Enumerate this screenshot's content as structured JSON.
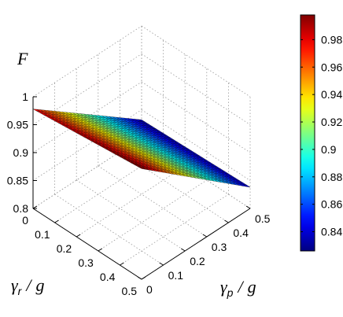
{
  "chart_data": {
    "type": "surface",
    "xlabel": {
      "symbol": "γ",
      "subscript": "r",
      "denominator": "g"
    },
    "ylabel": {
      "symbol": "γ",
      "subscript": "p",
      "denominator": "g"
    },
    "zlabel": "F",
    "xlim": [
      0,
      0.5
    ],
    "ylim": [
      0,
      0.5
    ],
    "zlim": [
      0.8,
      1.0
    ],
    "x_ticks": [
      "0",
      "0.1",
      "0.2",
      "0.3",
      "0.4",
      "0.5"
    ],
    "y_ticks": [
      "0",
      "0.1",
      "0.2",
      "0.3",
      "0.4",
      "0.5"
    ],
    "z_ticks": [
      "0.8",
      "0.85",
      "0.9",
      "0.95",
      "1"
    ],
    "grid": true,
    "colormap": "jet",
    "surface": {
      "grid_size": 31,
      "x_range": [
        0,
        0.5
      ],
      "y_range": [
        0,
        0.5
      ],
      "corner_values": {
        "x0_y0": 0.978,
        "x0_y05": 0.832,
        "x05_y0": 0.998,
        "x05_y05": 0.838
      }
    },
    "colorbar": {
      "ticks": [
        "0.84",
        "0.86",
        "0.88",
        "0.9",
        "0.92",
        "0.94",
        "0.96",
        "0.98"
      ],
      "range": [
        0.826,
        0.998
      ],
      "placement": "right"
    }
  }
}
